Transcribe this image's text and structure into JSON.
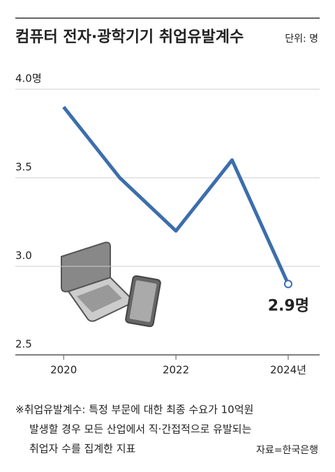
{
  "chart_data": {
    "type": "line",
    "title": "컴퓨터 전자·광학기기 취업유발계수",
    "unit": "단위: 명",
    "x": [
      2020,
      2021,
      2022,
      2023,
      2024
    ],
    "series": [
      {
        "name": "취업유발계수",
        "color": "#3c6eab",
        "values": [
          3.9,
          3.5,
          3.2,
          3.6,
          2.9
        ],
        "value_labels": [
          null,
          null,
          null,
          null,
          "2.9명"
        ]
      }
    ],
    "xlim": [
      2019.14,
      2024.56
    ],
    "xticks": [
      2020,
      2022,
      {
        "value": 2024,
        "label": "2024년"
      }
    ],
    "ylim": [
      2.5,
      4.0
    ],
    "yticks": [
      {
        "value": 2.5,
        "label": "2.5"
      },
      {
        "value": 3,
        "label": "3.0"
      },
      3.5,
      {
        "value": 4,
        "label": "4.0명"
      }
    ],
    "grid": true,
    "footnote": [
      "※취업유발계수: 특정 부문에 대한 최종 수요가 10억원",
      "발생할 경우 모든 산업에서 직·간접적으로 유발되는",
      "취업자 수를 집계한 지표"
    ],
    "source": "자료=한국은행"
  }
}
